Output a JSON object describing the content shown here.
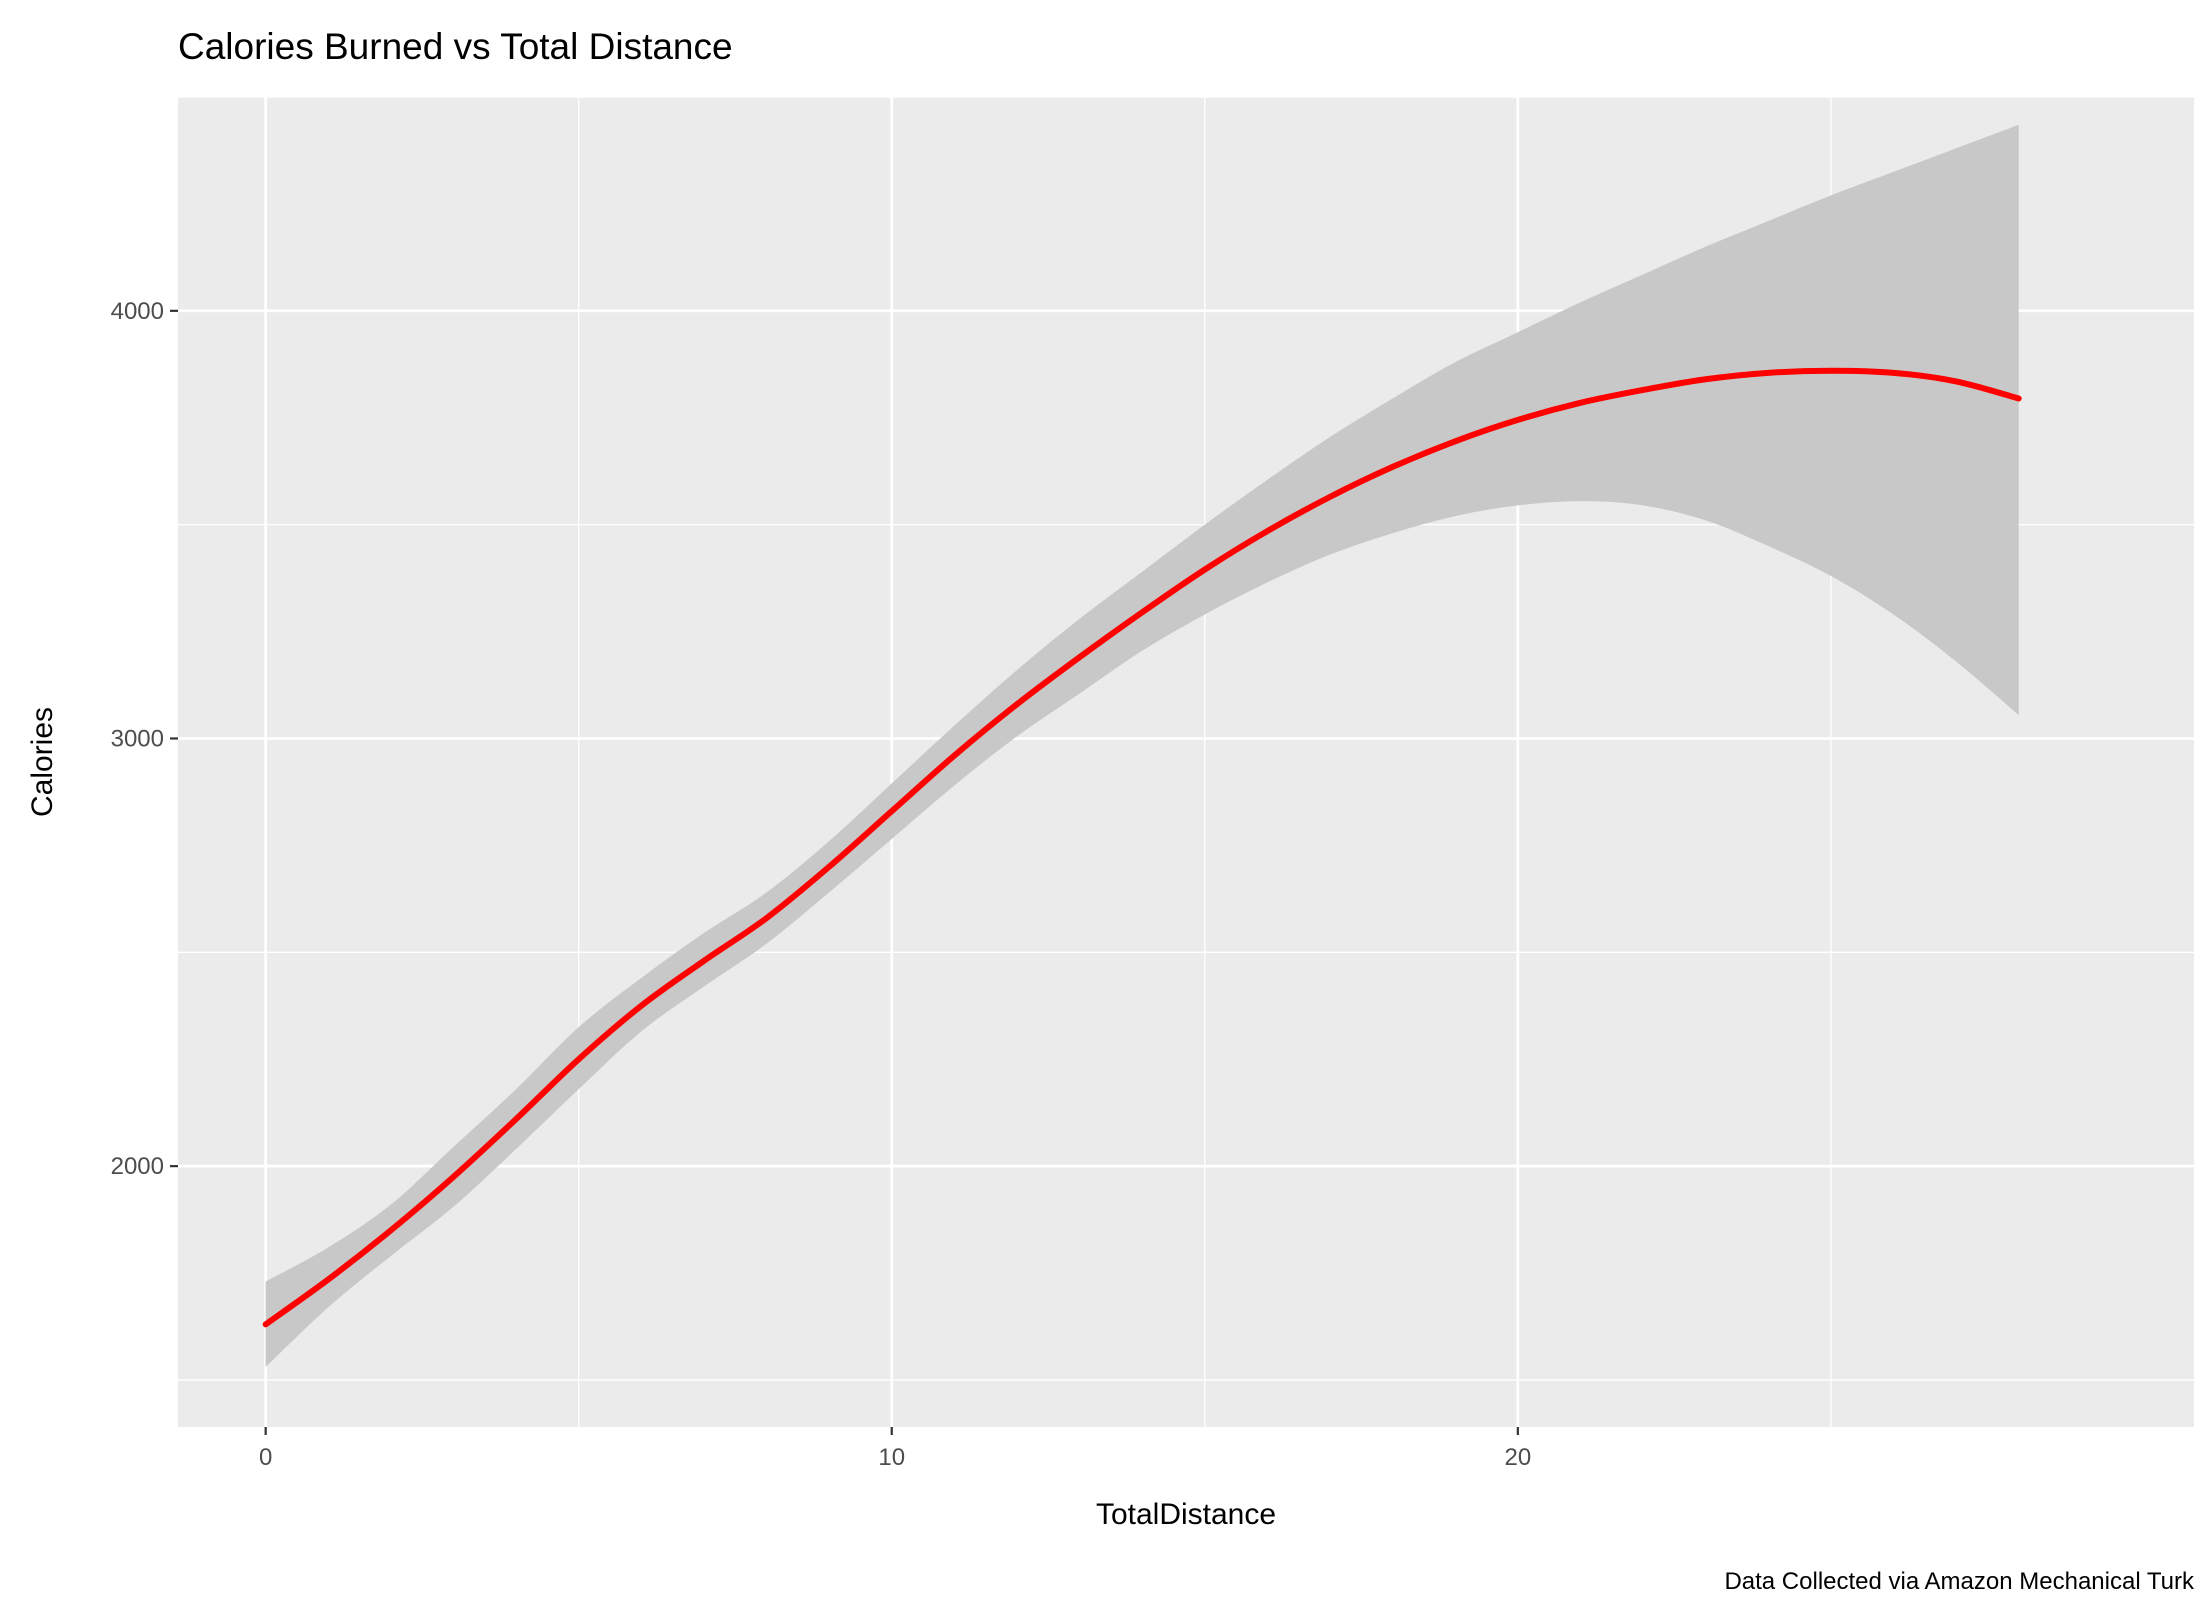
{
  "chart_data": {
    "type": "line",
    "title": "Calories Burned vs Total Distance",
    "xlabel": "TotalDistance",
    "ylabel": "Calories",
    "caption": "Data Collected via Amazon Mechanical Turk",
    "xlim": [
      -1.4,
      30.8
    ],
    "ylim": [
      1390,
      4500
    ],
    "x_ticks": [
      0,
      10,
      20
    ],
    "x_minor_ticks": [
      5,
      15,
      25
    ],
    "y_ticks": [
      2000,
      3000,
      4000
    ],
    "y_minor_ticks": [
      1500,
      2500,
      3500,
      4500
    ],
    "grid": true,
    "colors": {
      "panel": "#ebebeb",
      "grid": "#ffffff",
      "line": "#ff0000",
      "ribbon": "#c8c8c8"
    },
    "series": [
      {
        "x": [
          0,
          1,
          2,
          3,
          4,
          5,
          6,
          7,
          8,
          9,
          10,
          11,
          12,
          13,
          14,
          15,
          16,
          17,
          18,
          19,
          20,
          21,
          22,
          23,
          24,
          25,
          26,
          27,
          28
        ],
        "y": [
          1630,
          1735,
          1850,
          1975,
          2110,
          2250,
          2375,
          2480,
          2580,
          2700,
          2830,
          2960,
          3080,
          3190,
          3295,
          3395,
          3485,
          3565,
          3635,
          3695,
          3745,
          3785,
          3815,
          3840,
          3855,
          3860,
          3855,
          3835,
          3795
        ],
        "ci_lower": [
          1530,
          1670,
          1790,
          1905,
          2040,
          2180,
          2315,
          2420,
          2520,
          2640,
          2765,
          2890,
          3005,
          3105,
          3205,
          3290,
          3365,
          3430,
          3480,
          3520,
          3545,
          3555,
          3545,
          3510,
          3450,
          3380,
          3290,
          3180,
          3055
        ],
        "ci_upper": [
          1730,
          1810,
          1910,
          2045,
          2180,
          2325,
          2440,
          2545,
          2640,
          2760,
          2895,
          3030,
          3160,
          3280,
          3390,
          3500,
          3605,
          3705,
          3795,
          3880,
          3950,
          4020,
          4085,
          4150,
          4210,
          4270,
          4325,
          4380,
          4435
        ]
      }
    ]
  }
}
